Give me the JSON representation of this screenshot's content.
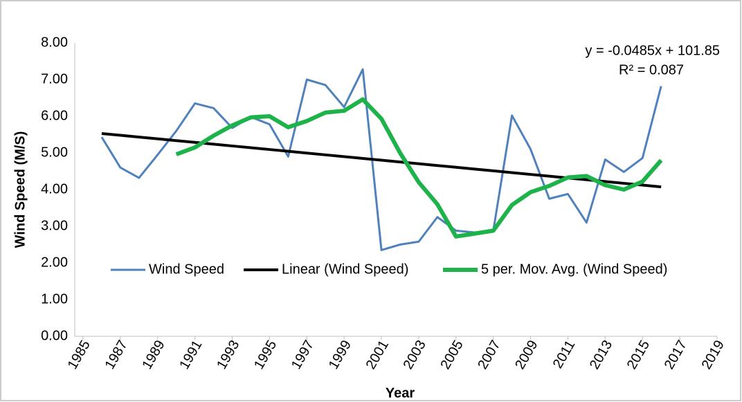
{
  "chart_data": {
    "type": "line",
    "x_label": "Year",
    "y_label": "Wind Speed (M/S)",
    "annotations": [
      "y = -0.0485x + 101.85",
      "R² = 0.087"
    ],
    "x": [
      1986,
      1987,
      1988,
      1989,
      1990,
      1991,
      1992,
      1993,
      1994,
      1995,
      1996,
      1997,
      1998,
      1999,
      2000,
      2001,
      2002,
      2003,
      2004,
      2005,
      2006,
      2007,
      2008,
      2009,
      2010,
      2011,
      2012,
      2013,
      2014,
      2015,
      2016
    ],
    "series": [
      {
        "name": "Wind Speed",
        "color": "#4f81bd",
        "width": 3,
        "values": [
          5.43,
          4.6,
          4.32,
          4.95,
          5.6,
          6.35,
          6.22,
          5.68,
          5.98,
          5.78,
          4.9,
          7.0,
          6.85,
          6.25,
          7.28,
          2.35,
          2.5,
          2.58,
          3.25,
          2.88,
          2.83,
          2.88,
          6.02,
          5.1,
          3.75,
          3.88,
          3.1,
          4.82,
          4.48,
          4.86,
          6.82
        ]
      },
      {
        "name": "Linear (Wind Speed)",
        "color": "#000000",
        "width": 4,
        "values": [
          5.529,
          5.481,
          5.432,
          5.384,
          5.335,
          5.287,
          5.238,
          5.19,
          5.141,
          5.093,
          5.044,
          4.996,
          4.947,
          4.899,
          4.85,
          4.802,
          4.753,
          4.705,
          4.656,
          4.608,
          4.559,
          4.511,
          4.462,
          4.414,
          4.365,
          4.317,
          4.268,
          4.22,
          4.171,
          4.123,
          4.074
        ]
      },
      {
        "name": "5 per. Mov. Avg. (Wind Speed)",
        "color": "#1db34a",
        "width": 6,
        "values": [
          null,
          null,
          null,
          null,
          4.96,
          5.15,
          5.47,
          5.75,
          5.97,
          6.0,
          5.7,
          5.87,
          6.1,
          6.15,
          6.46,
          5.93,
          5.0,
          4.2,
          3.6,
          2.72,
          2.8,
          2.88,
          3.58,
          3.93,
          4.1,
          4.33,
          4.37,
          4.12,
          4.0,
          4.22,
          4.8
        ]
      }
    ],
    "xlim": [
      1985,
      2019
    ],
    "xticks": [
      1985,
      1987,
      1989,
      1991,
      1993,
      1995,
      1997,
      1999,
      2001,
      2003,
      2005,
      2007,
      2009,
      2011,
      2013,
      2015,
      2017,
      2019
    ],
    "ylim": [
      0,
      8
    ],
    "yticks": [
      {
        "value": 0,
        "label": "0.00"
      },
      {
        "value": 1,
        "label": "1.00"
      },
      {
        "value": 2,
        "label": "2.00"
      },
      {
        "value": 3,
        "label": "3.00"
      },
      {
        "value": 4,
        "label": "4.00"
      },
      {
        "value": 5,
        "label": "5.00"
      },
      {
        "value": 6,
        "label": "6.00"
      },
      {
        "value": 7,
        "label": "7.00"
      },
      {
        "value": 8,
        "label": "8.00"
      }
    ],
    "grid": false
  }
}
